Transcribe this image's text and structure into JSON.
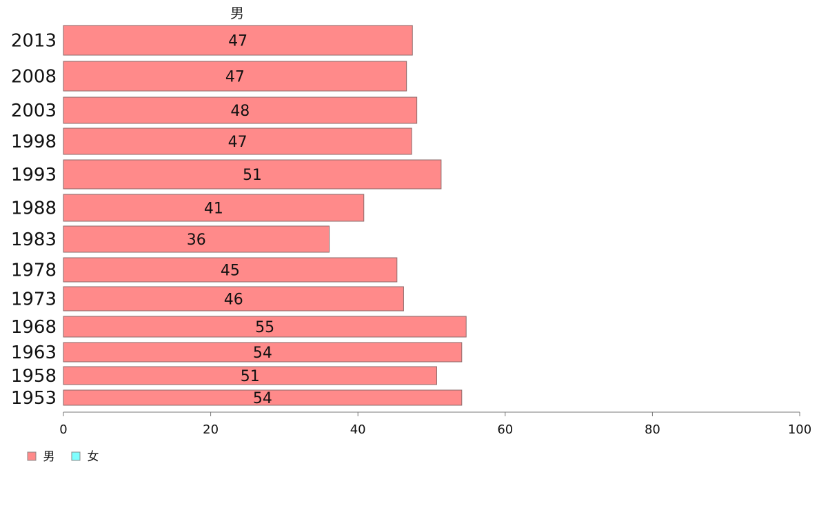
{
  "chart_data": {
    "type": "bar",
    "orientation": "horizontal",
    "title": "男",
    "xlabel": "",
    "ylabel": "",
    "xlim": [
      0,
      100
    ],
    "x_ticks": [
      0,
      20,
      40,
      60,
      80,
      100
    ],
    "categories": [
      "2013",
      "2008",
      "2003",
      "1998",
      "1993",
      "1988",
      "1983",
      "1978",
      "1973",
      "1968",
      "1963",
      "1958",
      "1953"
    ],
    "series": [
      {
        "name": "男",
        "color": "#ff8a8a",
        "values": [
          47.4,
          46.6,
          48.0,
          47.3,
          51.3,
          40.8,
          36.1,
          45.3,
          46.2,
          54.7,
          54.1,
          50.7,
          54.1
        ],
        "labels": [
          "47",
          "47",
          "48",
          "47",
          "51",
          "41",
          "36",
          "45",
          "46",
          "55",
          "54",
          "51",
          "54"
        ]
      }
    ],
    "legend": {
      "placement": "bottom-left",
      "entries": [
        {
          "label": "男",
          "color": "#ff8a8a"
        },
        {
          "label": "女",
          "color": "#80ffff"
        }
      ]
    },
    "grid": false
  }
}
